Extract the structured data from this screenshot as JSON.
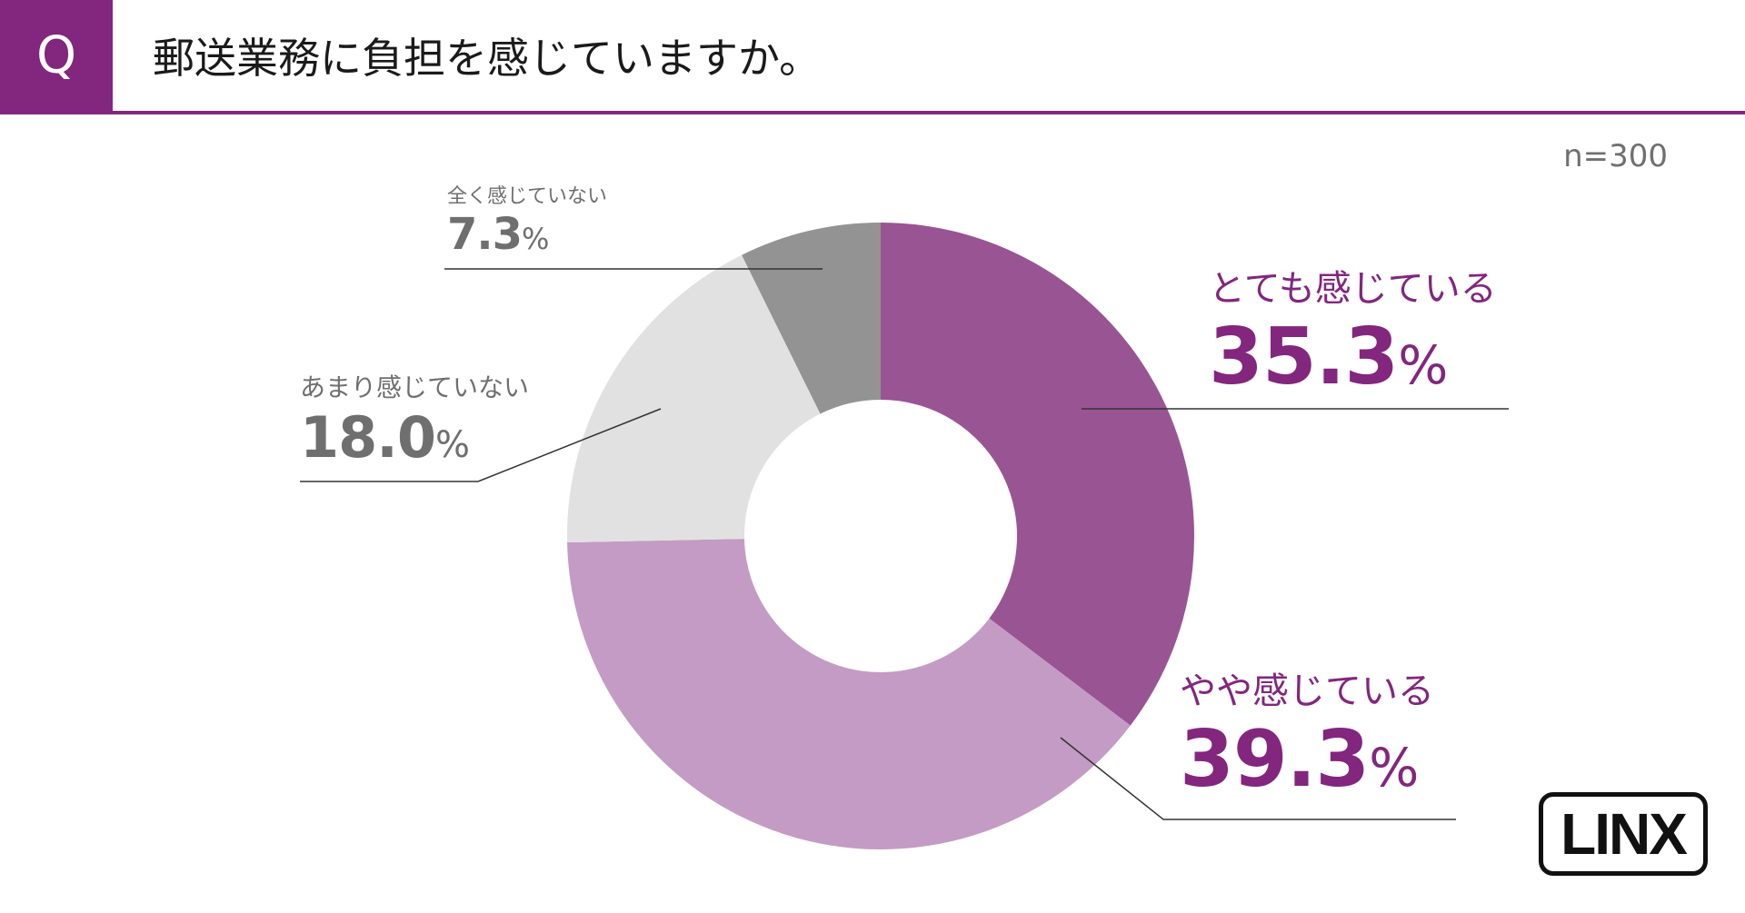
{
  "header": {
    "q_label": "Q",
    "question": "郵送業務に負担を感じていますか。"
  },
  "sample": "n=300",
  "colors": {
    "accent": "#82267e"
  },
  "chart_data": {
    "type": "pie",
    "donut": true,
    "sample_size": "n=300",
    "slices": [
      {
        "label": "とても感じている",
        "value": 35.3,
        "display": "35.3",
        "color": "#995494"
      },
      {
        "label": "やや感じている",
        "value": 39.3,
        "display": "39.3",
        "color": "#c49bc4"
      },
      {
        "label": "あまり感じていない",
        "value": 18.0,
        "display": "18.0",
        "color": "#e1e1e1"
      },
      {
        "label": "全く感じていない",
        "value": 7.3,
        "display": "7.3",
        "color": "#939393"
      }
    ],
    "unit": "%"
  },
  "logo": {
    "text": "LINX"
  }
}
